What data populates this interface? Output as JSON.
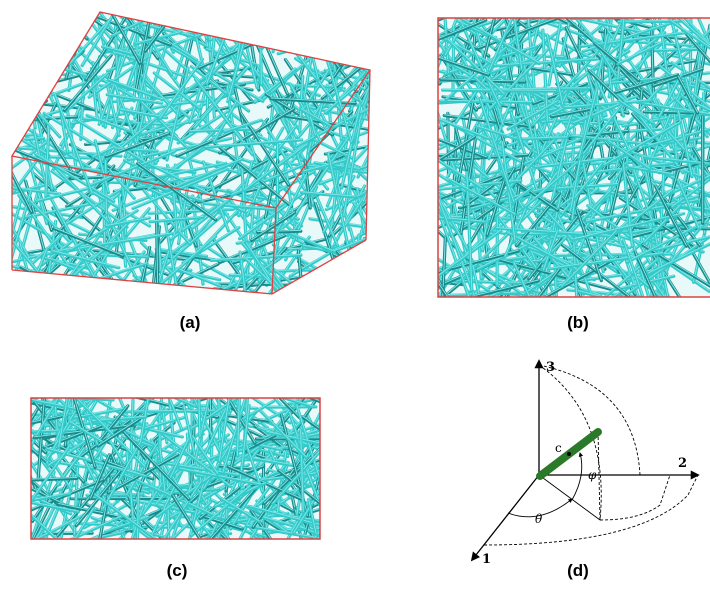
{
  "panels": {
    "a": {
      "caption": "(a)"
    },
    "b": {
      "caption": "(b)"
    },
    "c": {
      "caption": "(c)"
    },
    "d": {
      "caption": "(d)"
    }
  },
  "diagram_d": {
    "axis_1_label": "1",
    "axis_2_label": "2",
    "axis_3_label": "3",
    "fiber_label": "c",
    "theta_label": "θ",
    "phi_label": "φ"
  },
  "colors": {
    "fiber": "#33c9c9",
    "fiber_dark": "#1a8a8a",
    "fiber_light": "#7fe6e6",
    "box_edge": "#e04040",
    "green_fiber": "#2a7a2a",
    "background": "#ffffff"
  },
  "icons": {
    "fiber_network_3d": "random-fiber-network-box",
    "fiber_network_top": "random-fiber-network-top-view",
    "fiber_network_side": "random-fiber-network-side-view",
    "orientation": "fiber-orientation-angles"
  }
}
